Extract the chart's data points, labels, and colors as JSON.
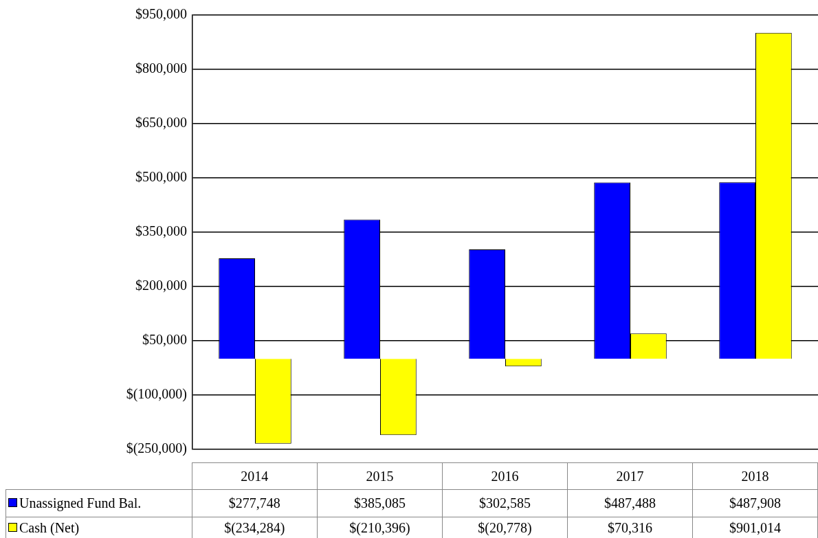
{
  "chart_data": {
    "type": "bar",
    "categories": [
      "2014",
      "2015",
      "2016",
      "2017",
      "2018"
    ],
    "series": [
      {
        "name": "Unassigned Fund Bal.",
        "color": "#0000ff",
        "values": [
          277748,
          385085,
          302585,
          487488,
          487908
        ],
        "value_labels": [
          "$277,748",
          "$385,085",
          "$302,585",
          "$487,488",
          "$487,908"
        ]
      },
      {
        "name": "Cash (Net)",
        "color": "#ffff00",
        "values": [
          -234284,
          -210396,
          -20778,
          70316,
          901014
        ],
        "value_labels": [
          "$(234,284)",
          "$(210,396)",
          "$(20,778)",
          "$70,316",
          "$901,014"
        ]
      }
    ],
    "ylim": [
      -250000,
      950000
    ],
    "yticks": [
      {
        "value": -250000,
        "label": "$(250,000)"
      },
      {
        "value": -100000,
        "label": "$(100,000)"
      },
      {
        "value": 50000,
        "label": "$50,000"
      },
      {
        "value": 200000,
        "label": "$200,000"
      },
      {
        "value": 350000,
        "label": "$350,000"
      },
      {
        "value": 500000,
        "label": "$500,000"
      },
      {
        "value": 650000,
        "label": "$650,000"
      },
      {
        "value": 800000,
        "label": "$800,000"
      },
      {
        "value": 950000,
        "label": "$950,000"
      }
    ],
    "grid": "y",
    "legend": "bottom"
  }
}
